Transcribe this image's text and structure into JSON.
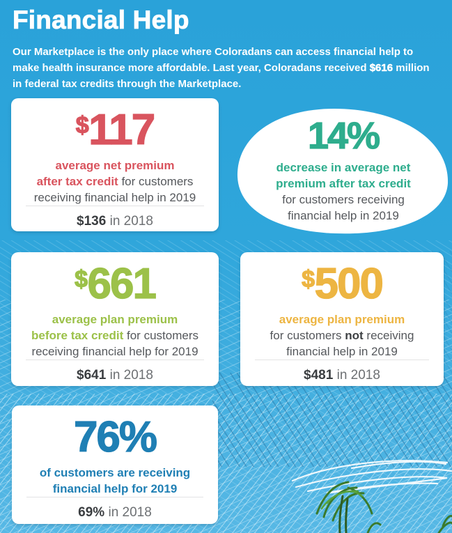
{
  "page": {
    "title": "Financial Help"
  },
  "intro": {
    "segments": [
      {
        "text": "Our Marketplace is the only place where Coloradans can access financial help to",
        "style": "plain"
      },
      {
        "br": true,
        "text": "make health insurance more affordable. Last year, Coloradans received ",
        "style": "plain"
      },
      {
        "text": "$616",
        "style": "bold"
      },
      {
        "text": " million",
        "style": "plain"
      },
      {
        "br": true,
        "text": "in federal tax credits through the Marketplace.",
        "style": "plain"
      }
    ]
  },
  "palette": {
    "background_top": "#2aa2d9",
    "background_bottom": "#57b8e5",
    "card_background": "#ffffff",
    "body_text": "#55585c",
    "muted_text": "#6d7073"
  },
  "stats": {
    "net_premium_after_credit": {
      "accent": "#d9545e",
      "currency": "$",
      "number": "117",
      "suffix": "",
      "description": [
        {
          "text": "average net premium",
          "style": "accent"
        },
        {
          "br": true,
          "text": "after tax credit",
          "style": "accent"
        },
        {
          "text": " for customers",
          "style": "plain"
        },
        {
          "br": true,
          "text": "receiving financial help in 2019",
          "style": "plain"
        }
      ],
      "previous": {
        "value": "$136",
        "label": " in 2018"
      }
    },
    "decrease_percent": {
      "accent": "#2fae8d",
      "accent_fixed": "#2ead8d",
      "currency": "",
      "number": "14",
      "suffix": "%",
      "description": [
        {
          "text": "decrease in average net",
          "style": "accent"
        },
        {
          "br": true,
          "text": "premium after tax credit",
          "style": "accent"
        },
        {
          "br": true,
          "text": "for customers receiving",
          "style": "plain"
        },
        {
          "br": true,
          "text": "financial help in 2019",
          "style": "plain"
        }
      ]
    },
    "plan_premium_before_credit": {
      "accent": "#9cc149",
      "currency": "$",
      "number": "661",
      "suffix": "",
      "description": [
        {
          "text": "average plan premium",
          "style": "accent"
        },
        {
          "br": true,
          "text": "before tax credit",
          "style": "accent"
        },
        {
          "text": " for customers",
          "style": "plain"
        },
        {
          "br": true,
          "text": "receiving financial help for 2019",
          "style": "plain"
        }
      ],
      "previous": {
        "value": "$641",
        "label": " in 2018"
      }
    },
    "plan_premium_no_help": {
      "accent": "#edb542",
      "currency": "$",
      "number": "500",
      "suffix": "",
      "description": [
        {
          "text": "average plan premium",
          "style": "accent"
        },
        {
          "br": true,
          "text": "for customers ",
          "style": "plain"
        },
        {
          "text": "not",
          "style": "bold"
        },
        {
          "text": " receiving",
          "style": "plain"
        },
        {
          "br": true,
          "text": "financial help in 2019",
          "style": "plain"
        }
      ],
      "previous": {
        "value": "$481",
        "label": " in 2018"
      }
    },
    "customers_receiving_help": {
      "accent": "#1f7fb4",
      "currency": "",
      "number": "76",
      "suffix": "%",
      "description": [
        {
          "text": "of customers are receiving",
          "style": "accent"
        },
        {
          "br": true,
          "text": "financial help for 2019",
          "style": "accent"
        }
      ],
      "previous": {
        "value": "69%",
        "label": " in 2018"
      }
    }
  }
}
